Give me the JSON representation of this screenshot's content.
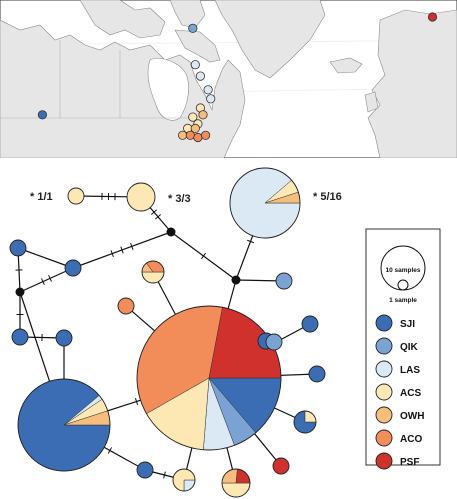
{
  "colors": {
    "SJI": "#3a6db3",
    "QIK": "#7aa3d3",
    "LAS": "#dbe9f5",
    "ACS": "#fde8b3",
    "OWH": "#f6bd7c",
    "ACO": "#f28c58",
    "PSF": "#d0312d",
    "land": "#e6e6e6",
    "water": "#ffffff",
    "border": "#8a8a8a",
    "edge": "#111111"
  },
  "annotations": {
    "label_1_1": "* 1/1",
    "label_3_3": "* 3/3",
    "label_5_16": "* 5/16"
  },
  "legend": {
    "size_large": "10 samples",
    "size_small": "1 sample",
    "populations": [
      {
        "code": "SJI"
      },
      {
        "code": "QIK"
      },
      {
        "code": "LAS"
      },
      {
        "code": "ACS"
      },
      {
        "code": "OWH"
      },
      {
        "code": "ACO"
      },
      {
        "code": "PSF"
      }
    ]
  },
  "map_sites": [
    {
      "pop": "SJI",
      "lon": -123.0,
      "lat": 48.5
    },
    {
      "pop": "QIK",
      "lon": -64.0,
      "lat": 67.5
    },
    {
      "pop": "LAS",
      "lon": -63.0,
      "lat": 59.5
    },
    {
      "pop": "LAS",
      "lon": -61.0,
      "lat": 57.0
    },
    {
      "pop": "LAS",
      "lon": -58.0,
      "lat": 54.0
    },
    {
      "pop": "LAS",
      "lon": -57.0,
      "lat": 52.0
    },
    {
      "pop": "ACS",
      "lon": -61.0,
      "lat": 50.0
    },
    {
      "pop": "ACS",
      "lon": -64.0,
      "lat": 48.0
    },
    {
      "pop": "ACS",
      "lon": -62.0,
      "lat": 46.5
    },
    {
      "pop": "ACS",
      "lon": -66.0,
      "lat": 45.5
    },
    {
      "pop": "OWH",
      "lon": -60.0,
      "lat": 48.5
    },
    {
      "pop": "OWH",
      "lon": -63.0,
      "lat": 45.5
    },
    {
      "pop": "OWH",
      "lon": -68.0,
      "lat": 44.0
    },
    {
      "pop": "ACO",
      "lon": -65.0,
      "lat": 44.0
    },
    {
      "pop": "ACO",
      "lon": -62.0,
      "lat": 43.5
    },
    {
      "pop": "ACO",
      "lon": -59.0,
      "lat": 44.0
    },
    {
      "pop": "PSF",
      "lon": 30.0,
      "lat": 70.0
    }
  ],
  "haplotypes": [
    {
      "id": "h_sji_big",
      "total": 18,
      "pie": [
        {
          "pop": "SJI",
          "n": 16
        },
        {
          "pop": "LAS",
          "n": 0.3
        },
        {
          "pop": "ACS",
          "n": 0.8
        },
        {
          "pop": "OWH",
          "n": 0.9
        }
      ]
    },
    {
      "id": "h_central",
      "total": 40,
      "pie": [
        {
          "pop": "SJI",
          "n": 5.5
        },
        {
          "pop": "QIK",
          "n": 2.2
        },
        {
          "pop": "LAS",
          "n": 2.8
        },
        {
          "pop": "ACS",
          "n": 6.2
        },
        {
          "pop": "ACO",
          "n": 14.5
        },
        {
          "pop": "PSF",
          "n": 8.8
        }
      ]
    },
    {
      "id": "h_las",
      "total": 16,
      "pie": [
        {
          "pop": "LAS",
          "n": 14.2
        },
        {
          "pop": "ACS",
          "n": 1.0
        },
        {
          "pop": "OWH",
          "n": 0.8
        }
      ]
    },
    {
      "id": "h_acs3",
      "total": 3,
      "pie": [
        {
          "pop": "ACS",
          "n": 3
        }
      ]
    },
    {
      "id": "h_acs1",
      "total": 1,
      "pie": [
        {
          "pop": "ACS",
          "n": 1
        }
      ]
    },
    {
      "id": "h_ow_mixed",
      "total": 2,
      "pie": [
        {
          "pop": "ACS",
          "n": 1
        },
        {
          "pop": "OWH",
          "n": 0.3
        },
        {
          "pop": "ACO",
          "n": 0.7
        }
      ]
    },
    {
      "id": "h_sji_tr",
      "total": 2,
      "pie": [
        {
          "pop": "SJI",
          "n": 1.5
        },
        {
          "pop": "ACS",
          "n": 0.5
        }
      ]
    },
    {
      "id": "h_bottom1",
      "total": 2,
      "pie": [
        {
          "pop": "LAS",
          "n": 0.5
        },
        {
          "pop": "ACS",
          "n": 1.5
        }
      ]
    },
    {
      "id": "h_bottom2",
      "total": 3,
      "pie": [
        {
          "pop": "ACS",
          "n": 1.5
        },
        {
          "pop": "OWH",
          "n": 0.8
        },
        {
          "pop": "PSF",
          "n": 0.7
        }
      ]
    },
    {
      "id": "s1",
      "total": 1,
      "pie": [
        {
          "pop": "SJI",
          "n": 1
        }
      ]
    },
    {
      "id": "s2",
      "total": 1,
      "pie": [
        {
          "pop": "SJI",
          "n": 1
        }
      ]
    },
    {
      "id": "s3",
      "total": 1,
      "pie": [
        {
          "pop": "SJI",
          "n": 1
        }
      ]
    },
    {
      "id": "s4",
      "total": 1,
      "pie": [
        {
          "pop": "SJI",
          "n": 1
        }
      ]
    },
    {
      "id": "s5",
      "total": 1,
      "pie": [
        {
          "pop": "SJI",
          "n": 1
        }
      ]
    },
    {
      "id": "s6",
      "total": 1,
      "pie": [
        {
          "pop": "SJI",
          "n": 1
        }
      ]
    },
    {
      "id": "s7",
      "total": 1,
      "pie": [
        {
          "pop": "SJI",
          "n": 1
        }
      ]
    },
    {
      "id": "s8",
      "total": 1,
      "pie": [
        {
          "pop": "SJI",
          "n": 1
        }
      ]
    },
    {
      "id": "q1",
      "total": 1,
      "pie": [
        {
          "pop": "QIK",
          "n": 1
        }
      ]
    },
    {
      "id": "q2",
      "total": 1,
      "pie": [
        {
          "pop": "QIK",
          "n": 1
        }
      ]
    },
    {
      "id": "a1",
      "total": 1,
      "pie": [
        {
          "pop": "ACO",
          "n": 1
        }
      ]
    },
    {
      "id": "p1",
      "total": 1,
      "pie": [
        {
          "pop": "PSF",
          "n": 1
        }
      ]
    }
  ]
}
